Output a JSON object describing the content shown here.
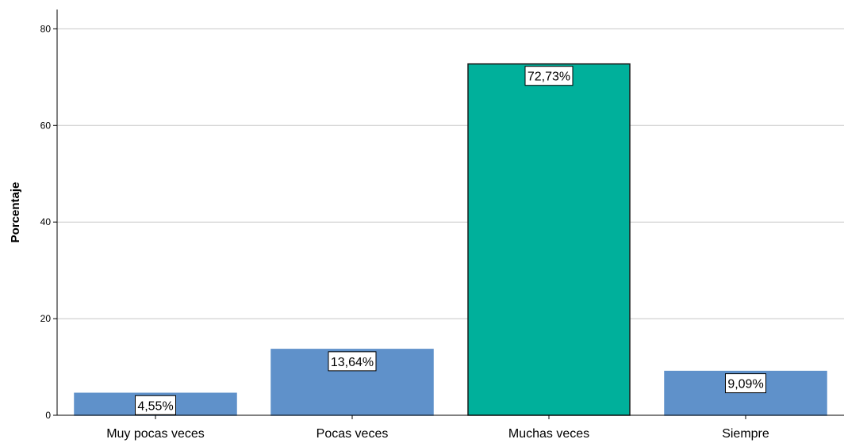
{
  "chart_data": {
    "type": "bar",
    "title": "",
    "xlabel": "",
    "ylabel": "Porcentaje",
    "ylim": [
      0,
      84
    ],
    "yticks": [
      0,
      20,
      40,
      60,
      80
    ],
    "grid": true,
    "categories": [
      "Muy pocas veces",
      "Pocas veces",
      "Muchas veces",
      "Siempre"
    ],
    "values": [
      4.55,
      13.64,
      72.73,
      9.09
    ],
    "data_labels": [
      "4,55%",
      "13,64%",
      "72,73%",
      "9,09%"
    ],
    "bar_colors": [
      "#5f91ca",
      "#5f91ca",
      "#00b09b",
      "#5f91ca"
    ],
    "bar_outline_colors": [
      "#5f91ca",
      "#5f91ca",
      "#1a1a1a",
      "#5f91ca"
    ],
    "grid_color": "#c8c8c8",
    "axis_color": "#000000"
  }
}
